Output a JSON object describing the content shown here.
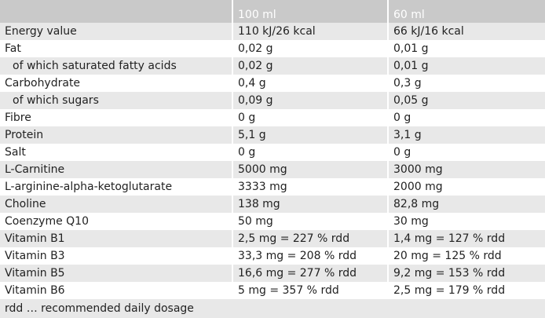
{
  "table": {
    "header": [
      "100 ml",
      "60 ml"
    ],
    "rows": [
      {
        "label": "Energy value",
        "cells": [
          "110 kJ/26 kcal",
          "66 kJ/16 kcal"
        ]
      },
      {
        "label": "Fat",
        "cells": [
          "0,02 g",
          "0,01 g"
        ]
      },
      {
        "label": "of which saturated fatty acids",
        "indent": true,
        "cells": [
          "0,02 g",
          "0,01 g"
        ]
      },
      {
        "label": "Carbohydrate",
        "cells": [
          "0,4 g",
          "0,3 g"
        ]
      },
      {
        "label": "of which sugars",
        "indent": true,
        "cells": [
          "0,09 g",
          "0,05 g"
        ]
      },
      {
        "label": "Fibre",
        "cells": [
          "0 g",
          "0 g"
        ]
      },
      {
        "label": "Protein",
        "cells": [
          "5,1 g",
          "3,1 g"
        ]
      },
      {
        "label": "Salt",
        "cells": [
          "0 g",
          "0 g"
        ]
      },
      {
        "label": "L-Carnitine",
        "cells": [
          "5000 mg",
          "3000 mg"
        ]
      },
      {
        "label": "L-arginine-alpha-ketoglutarate",
        "cells": [
          "3333 mg",
          "2000 mg"
        ]
      },
      {
        "label": "Choline",
        "cells": [
          "138 mg",
          "82,8 mg"
        ]
      },
      {
        "label": "Coenzyme Q10",
        "cells": [
          "50 mg",
          "30 mg"
        ]
      },
      {
        "label": "Vitamin B1",
        "cells": [
          "2,5 mg = 227 % rdd",
          "1,4 mg = 127 % rdd"
        ]
      },
      {
        "label": "Vitamin B3",
        "cells": [
          "33,3 mg = 208 % rdd",
          "20 mg = 125 % rdd"
        ]
      },
      {
        "label": "Vitamin B5",
        "cells": [
          "16,6 mg = 277 % rdd",
          "9,2 mg = 153 % rdd"
        ]
      },
      {
        "label": "Vitamin B6",
        "cells": [
          "5 mg = 357 % rdd",
          "2,5 mg = 179 % rdd"
        ]
      }
    ],
    "footnote": "rdd … recommended daily dosage"
  }
}
